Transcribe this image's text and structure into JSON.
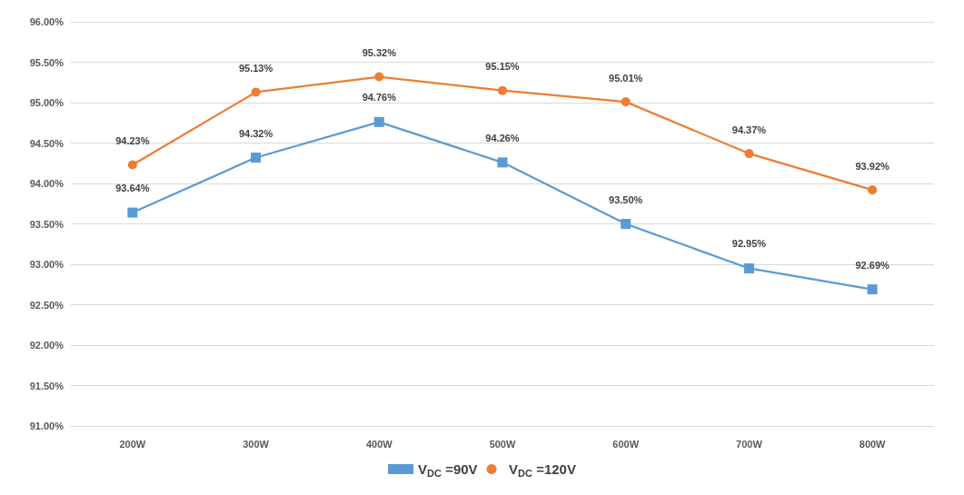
{
  "chart_data": {
    "type": "line",
    "categories": [
      "200W",
      "300W",
      "400W",
      "500W",
      "600W",
      "700W",
      "800W"
    ],
    "series": [
      {
        "name": "V$_{DC}$ =90V",
        "color": "#5b9bd5",
        "marker": "square",
        "values": [
          93.64,
          94.32,
          94.76,
          94.26,
          93.5,
          92.95,
          92.69
        ],
        "value_labels": [
          "93.64%",
          "94.32%",
          "94.76%",
          "94.26%",
          "93.50%",
          "92.95%",
          "92.69%"
        ]
      },
      {
        "name": "V$_{DC}$ =120V",
        "color": "#ed7d31",
        "marker": "circle",
        "values": [
          94.23,
          95.13,
          95.32,
          95.15,
          95.01,
          94.37,
          93.92
        ],
        "value_labels": [
          "94.23%",
          "95.13%",
          "95.32%",
          "95.15%",
          "95.01%",
          "94.37%",
          "93.92%"
        ]
      }
    ],
    "ylim": [
      91,
      96
    ],
    "yticks": [
      {
        "value": 91,
        "label": "91.00%"
      },
      {
        "value": 91.5,
        "label": "91.50%"
      },
      {
        "value": 92,
        "label": "92.00%"
      },
      {
        "value": 92.5,
        "label": "92.50%"
      },
      {
        "value": 93,
        "label": "93.00%"
      },
      {
        "value": 93.5,
        "label": "93.50%"
      },
      {
        "value": 94,
        "label": "94.00%"
      },
      {
        "value": 94.5,
        "label": "94.50%"
      },
      {
        "value": 95,
        "label": "95.00%"
      },
      {
        "value": 95.5,
        "label": "95.50%"
      },
      {
        "value": 96,
        "label": "96.00%"
      }
    ],
    "grid": "y",
    "legend": "bottom",
    "line_style": "solid"
  }
}
